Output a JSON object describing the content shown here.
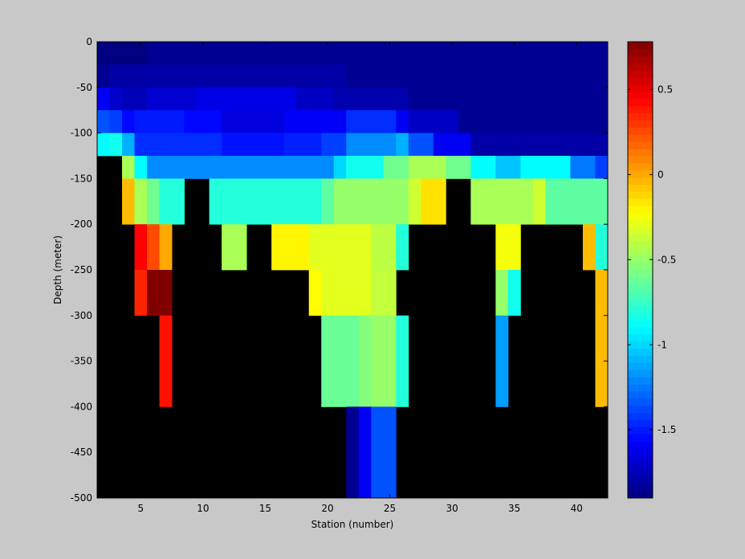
{
  "chart_data": {
    "type": "heatmap",
    "title": "",
    "xlabel": "Station (number)",
    "ylabel": "Depth (meter)",
    "xlim": [
      1.5,
      42.5
    ],
    "ylim": [
      -500,
      0
    ],
    "x_ticks": [
      "5",
      "10",
      "15",
      "20",
      "25",
      "30",
      "35",
      "40"
    ],
    "y_ticks": [
      "0",
      "-50",
      "-100",
      "-150",
      "-200",
      "-250",
      "-300",
      "-350",
      "-400",
      "-450",
      "-500"
    ],
    "colorbar": {
      "min": -1.9,
      "max": 0.78,
      "ticks": [
        "0.5",
        "0",
        "-0.5",
        "-1",
        "-1.5"
      ],
      "colormap": "jet"
    },
    "background_color": "#000000",
    "layers": [
      {
        "depth_top": 0,
        "depth_bottom": -25,
        "segments": [
          {
            "x0": 2,
            "x1": 5,
            "v": -1.9
          },
          {
            "x0": 6,
            "x1": 42,
            "v": -1.85
          }
        ]
      },
      {
        "depth_top": -25,
        "depth_bottom": -50,
        "segments": [
          {
            "x0": 2,
            "x1": 2,
            "v": -1.85
          },
          {
            "x0": 3,
            "x1": 21,
            "v": -1.8
          },
          {
            "x0": 22,
            "x1": 42,
            "v": -1.85
          }
        ]
      },
      {
        "depth_top": -50,
        "depth_bottom": -75,
        "segments": [
          {
            "x0": 2,
            "x1": 2,
            "v": -1.6
          },
          {
            "x0": 3,
            "x1": 3,
            "v": -1.7
          },
          {
            "x0": 4,
            "x1": 5,
            "v": -1.75
          },
          {
            "x0": 6,
            "x1": 9,
            "v": -1.68
          },
          {
            "x0": 10,
            "x1": 17,
            "v": -1.63
          },
          {
            "x0": 18,
            "x1": 20,
            "v": -1.72
          },
          {
            "x0": 21,
            "x1": 26,
            "v": -1.78
          },
          {
            "x0": 27,
            "x1": 42,
            "v": -1.85
          }
        ]
      },
      {
        "depth_top": -75,
        "depth_bottom": -100,
        "segments": [
          {
            "x0": 2,
            "x1": 2,
            "v": -1.35
          },
          {
            "x0": 3,
            "x1": 3,
            "v": -1.4
          },
          {
            "x0": 4,
            "x1": 4,
            "v": -1.55
          },
          {
            "x0": 5,
            "x1": 8,
            "v": -1.5
          },
          {
            "x0": 9,
            "x1": 11,
            "v": -1.55
          },
          {
            "x0": 12,
            "x1": 16,
            "v": -1.65
          },
          {
            "x0": 17,
            "x1": 21,
            "v": -1.58
          },
          {
            "x0": 22,
            "x1": 25,
            "v": -1.45
          },
          {
            "x0": 26,
            "x1": 26,
            "v": -1.6
          },
          {
            "x0": 27,
            "x1": 30,
            "v": -1.72
          },
          {
            "x0": 31,
            "x1": 42,
            "v": -1.85
          }
        ]
      },
      {
        "depth_top": -100,
        "depth_bottom": -125,
        "segments": [
          {
            "x0": 2,
            "x1": 2,
            "v": -0.9
          },
          {
            "x0": 3,
            "x1": 3,
            "v": -0.85
          },
          {
            "x0": 4,
            "x1": 4,
            "v": -1.1
          },
          {
            "x0": 5,
            "x1": 11,
            "v": -1.45
          },
          {
            "x0": 12,
            "x1": 16,
            "v": -1.52
          },
          {
            "x0": 17,
            "x1": 19,
            "v": -1.48
          },
          {
            "x0": 20,
            "x1": 21,
            "v": -1.4
          },
          {
            "x0": 22,
            "x1": 25,
            "v": -1.2
          },
          {
            "x0": 26,
            "x1": 26,
            "v": -1.1
          },
          {
            "x0": 27,
            "x1": 28,
            "v": -1.35
          },
          {
            "x0": 29,
            "x1": 31,
            "v": -1.6
          },
          {
            "x0": 32,
            "x1": 42,
            "v": -1.8
          }
        ]
      },
      {
        "depth_top": -125,
        "depth_bottom": -150,
        "segments": [
          {
            "x0": 4,
            "x1": 4,
            "v": -0.45
          },
          {
            "x0": 5,
            "x1": 5,
            "v": -0.9
          },
          {
            "x0": 6,
            "x1": 20,
            "v": -1.2
          },
          {
            "x0": 21,
            "x1": 21,
            "v": -1.0
          },
          {
            "x0": 22,
            "x1": 24,
            "v": -0.85
          },
          {
            "x0": 25,
            "x1": 26,
            "v": -0.6
          },
          {
            "x0": 27,
            "x1": 29,
            "v": -0.45
          },
          {
            "x0": 30,
            "x1": 31,
            "v": -0.6
          },
          {
            "x0": 32,
            "x1": 33,
            "v": -0.9
          },
          {
            "x0": 34,
            "x1": 35,
            "v": -1.05
          },
          {
            "x0": 36,
            "x1": 39,
            "v": -0.9
          },
          {
            "x0": 40,
            "x1": 41,
            "v": -1.25
          },
          {
            "x0": 42,
            "x1": 42,
            "v": -1.4
          }
        ]
      },
      {
        "depth_top": -150,
        "depth_bottom": -175,
        "segments": [
          {
            "x0": 4,
            "x1": 4,
            "v": -0.05
          },
          {
            "x0": 5,
            "x1": 5,
            "v": -0.45
          },
          {
            "x0": 6,
            "x1": 6,
            "v": -0.6
          },
          {
            "x0": 7,
            "x1": 8,
            "v": -0.8
          },
          {
            "x0": 11,
            "x1": 19,
            "v": -0.8
          },
          {
            "x0": 20,
            "x1": 20,
            "v": -0.65
          },
          {
            "x0": 21,
            "x1": 26,
            "v": -0.5
          },
          {
            "x0": 27,
            "x1": 27,
            "v": -0.35
          },
          {
            "x0": 28,
            "x1": 29,
            "v": -0.15
          },
          {
            "x0": 32,
            "x1": 32,
            "v": -0.45
          },
          {
            "x0": 33,
            "x1": 36,
            "v": -0.45
          },
          {
            "x0": 37,
            "x1": 37,
            "v": -0.35
          },
          {
            "x0": 38,
            "x1": 42,
            "v": -0.65
          }
        ]
      },
      {
        "depth_top": -175,
        "depth_bottom": -200,
        "segments": [
          {
            "x0": 4,
            "x1": 4,
            "v": -0.05
          },
          {
            "x0": 5,
            "x1": 5,
            "v": -0.45
          },
          {
            "x0": 6,
            "x1": 6,
            "v": -0.6
          },
          {
            "x0": 7,
            "x1": 8,
            "v": -0.8
          },
          {
            "x0": 11,
            "x1": 19,
            "v": -0.8
          },
          {
            "x0": 20,
            "x1": 20,
            "v": -0.65
          },
          {
            "x0": 21,
            "x1": 26,
            "v": -0.5
          },
          {
            "x0": 27,
            "x1": 27,
            "v": -0.35
          },
          {
            "x0": 28,
            "x1": 29,
            "v": -0.15
          },
          {
            "x0": 32,
            "x1": 32,
            "v": -0.45
          },
          {
            "x0": 33,
            "x1": 36,
            "v": -0.45
          },
          {
            "x0": 37,
            "x1": 37,
            "v": -0.35
          },
          {
            "x0": 38,
            "x1": 42,
            "v": -0.65
          }
        ]
      },
      {
        "depth_top": -200,
        "depth_bottom": -225,
        "segments": [
          {
            "x0": 5,
            "x1": 5,
            "v": 0.45
          },
          {
            "x0": 6,
            "x1": 6,
            "v": 0.25
          },
          {
            "x0": 7,
            "x1": 7,
            "v": 0.0
          },
          {
            "x0": 12,
            "x1": 13,
            "v": -0.45
          },
          {
            "x0": 16,
            "x1": 18,
            "v": -0.2
          },
          {
            "x0": 19,
            "x1": 23,
            "v": -0.3
          },
          {
            "x0": 24,
            "x1": 25,
            "v": -0.4
          },
          {
            "x0": 26,
            "x1": 26,
            "v": -0.8
          },
          {
            "x0": 34,
            "x1": 35,
            "v": -0.25
          },
          {
            "x0": 41,
            "x1": 41,
            "v": -0.05
          },
          {
            "x0": 42,
            "x1": 42,
            "v": -0.8
          }
        ]
      },
      {
        "depth_top": -225,
        "depth_bottom": -250,
        "segments": [
          {
            "x0": 5,
            "x1": 5,
            "v": 0.45
          },
          {
            "x0": 6,
            "x1": 6,
            "v": 0.25
          },
          {
            "x0": 7,
            "x1": 7,
            "v": 0.0
          },
          {
            "x0": 12,
            "x1": 13,
            "v": -0.45
          },
          {
            "x0": 16,
            "x1": 18,
            "v": -0.2
          },
          {
            "x0": 19,
            "x1": 23,
            "v": -0.3
          },
          {
            "x0": 24,
            "x1": 25,
            "v": -0.4
          },
          {
            "x0": 26,
            "x1": 26,
            "v": -0.8
          },
          {
            "x0": 34,
            "x1": 35,
            "v": -0.25
          },
          {
            "x0": 41,
            "x1": 41,
            "v": -0.05
          },
          {
            "x0": 42,
            "x1": 42,
            "v": -0.8
          }
        ]
      },
      {
        "depth_top": -250,
        "depth_bottom": -275,
        "segments": [
          {
            "x0": 5,
            "x1": 5,
            "v": 0.35
          },
          {
            "x0": 6,
            "x1": 7,
            "v": 0.78
          },
          {
            "x0": 19,
            "x1": 19,
            "v": -0.22
          },
          {
            "x0": 20,
            "x1": 23,
            "v": -0.3
          },
          {
            "x0": 24,
            "x1": 25,
            "v": -0.38
          },
          {
            "x0": 34,
            "x1": 34,
            "v": -0.5
          },
          {
            "x0": 35,
            "x1": 35,
            "v": -0.85
          },
          {
            "x0": 42,
            "x1": 42,
            "v": -0.05
          }
        ]
      },
      {
        "depth_top": -275,
        "depth_bottom": -300,
        "segments": [
          {
            "x0": 5,
            "x1": 5,
            "v": 0.35
          },
          {
            "x0": 6,
            "x1": 7,
            "v": 0.78
          },
          {
            "x0": 19,
            "x1": 19,
            "v": -0.22
          },
          {
            "x0": 20,
            "x1": 23,
            "v": -0.3
          },
          {
            "x0": 24,
            "x1": 25,
            "v": -0.38
          },
          {
            "x0": 34,
            "x1": 34,
            "v": -0.5
          },
          {
            "x0": 35,
            "x1": 35,
            "v": -0.85
          },
          {
            "x0": 42,
            "x1": 42,
            "v": -0.05
          }
        ]
      },
      {
        "depth_top": -300,
        "depth_bottom": -400,
        "segments": [
          {
            "x0": 7,
            "x1": 7,
            "v": 0.4
          },
          {
            "x0": 20,
            "x1": 22,
            "v": -0.62
          },
          {
            "x0": 23,
            "x1": 23,
            "v": -0.55
          },
          {
            "x0": 24,
            "x1": 25,
            "v": -0.5
          },
          {
            "x0": 26,
            "x1": 26,
            "v": -0.8
          },
          {
            "x0": 34,
            "x1": 34,
            "v": -1.15
          },
          {
            "x0": 42,
            "x1": 42,
            "v": -0.05
          }
        ]
      },
      {
        "depth_top": -400,
        "depth_bottom": -500,
        "segments": [
          {
            "x0": 22,
            "x1": 22,
            "v": -1.85
          },
          {
            "x0": 23,
            "x1": 23,
            "v": -1.6
          },
          {
            "x0": 24,
            "x1": 25,
            "v": -1.35
          }
        ]
      }
    ]
  }
}
